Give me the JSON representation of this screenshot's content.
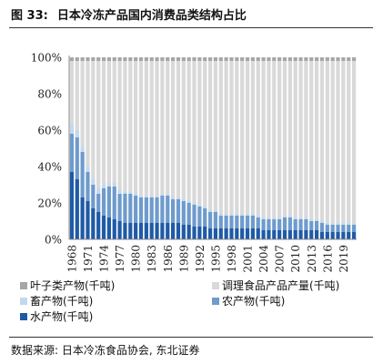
{
  "figure": {
    "title_prefix": "图 33:",
    "title": "日本冷冻产品国内消费品类结构占比",
    "source": "数据来源: 日本冷冻食品协会, 东北证券"
  },
  "chart_data": {
    "type": "bar",
    "stacked": true,
    "title": "日本冷冻产品国内消费品类结构占比",
    "xlabel": "",
    "ylabel": "",
    "ylim": [
      0,
      100
    ],
    "yticks": [
      "0%",
      "20%",
      "40%",
      "60%",
      "80%",
      "100%"
    ],
    "grid": false,
    "legend_position": "bottom",
    "x": [
      1968,
      1969,
      1970,
      1971,
      1972,
      1973,
      1974,
      1975,
      1976,
      1977,
      1978,
      1979,
      1980,
      1981,
      1982,
      1983,
      1984,
      1985,
      1986,
      1987,
      1988,
      1989,
      1990,
      1991,
      1992,
      1993,
      1994,
      1995,
      1996,
      1997,
      1998,
      1999,
      2000,
      2001,
      2002,
      2003,
      2004,
      2005,
      2006,
      2007,
      2008,
      2009,
      2010,
      2011,
      2012,
      2013,
      2014,
      2015,
      2016,
      2017,
      2018,
      2019,
      2020,
      2021
    ],
    "xtick_labels": [
      "1968",
      "1971",
      "1974",
      "1977",
      "1980",
      "1983",
      "1986",
      "1989",
      "1992",
      "1995",
      "1998",
      "2001",
      "2004",
      "2007",
      "2010",
      "2013",
      "2016",
      "2019"
    ],
    "series": [
      {
        "name": "水产物(千吨)",
        "color": "#1f5aa6",
        "values": [
          37,
          33,
          23,
          21,
          17,
          15,
          13,
          12,
          11,
          10,
          9,
          9,
          9,
          9,
          9,
          9,
          9,
          9,
          9,
          9,
          9,
          8,
          8,
          7,
          7,
          7,
          6,
          6,
          6,
          6,
          6,
          6,
          6,
          6,
          6,
          6,
          5,
          5,
          5,
          5,
          5,
          5,
          5,
          5,
          5,
          5,
          5,
          4,
          4,
          4,
          4,
          4,
          4,
          4
        ]
      },
      {
        "name": "农产物(千吨)",
        "color": "#6e9bcc",
        "values": [
          21,
          23,
          25,
          16,
          13,
          10,
          15,
          17,
          18,
          15,
          16,
          16,
          15,
          14,
          14,
          14,
          14,
          15,
          15,
          13,
          13,
          13,
          12,
          12,
          11,
          10,
          9,
          9,
          7,
          7,
          7,
          7,
          7,
          7,
          7,
          6,
          6,
          6,
          6,
          6,
          7,
          7,
          6,
          6,
          6,
          5,
          5,
          5,
          4,
          4,
          4,
          4,
          4,
          4
        ]
      },
      {
        "name": "畜产物(千吨)",
        "color": "#c3d8ec",
        "values": [
          5,
          4,
          3,
          3,
          3,
          3,
          2,
          2,
          2,
          2,
          1,
          1,
          1,
          1,
          1,
          1,
          1,
          1,
          1,
          1,
          1,
          1,
          1,
          1,
          1,
          1,
          1,
          1,
          1,
          1,
          1,
          1,
          1,
          1,
          1,
          1,
          1,
          1,
          1,
          1,
          1,
          1,
          1,
          1,
          1,
          1,
          1,
          1,
          1,
          1,
          1,
          1,
          1,
          1
        ]
      },
      {
        "name": "调理食品产品产量(千吨)",
        "color": "#d9d9d9",
        "values": [
          35,
          38,
          47,
          58,
          65,
          70,
          68,
          67,
          67,
          71,
          72,
          72,
          73,
          74,
          74,
          74,
          74,
          73,
          73,
          75,
          75,
          76,
          77,
          78,
          79,
          80,
          82,
          82,
          84,
          84,
          84,
          84,
          84,
          84,
          84,
          85,
          86,
          86,
          86,
          86,
          85,
          85,
          86,
          86,
          86,
          87,
          87,
          88,
          89,
          89,
          89,
          89,
          89,
          89
        ]
      },
      {
        "name": "叶子类产物(千吨)",
        "color": "#a6a6a6",
        "values": [
          2,
          2,
          2,
          2,
          2,
          2,
          2,
          2,
          2,
          2,
          2,
          2,
          2,
          2,
          2,
          2,
          2,
          2,
          2,
          2,
          2,
          2,
          2,
          2,
          2,
          2,
          2,
          2,
          2,
          2,
          2,
          2,
          2,
          2,
          2,
          2,
          2,
          2,
          2,
          2,
          2,
          2,
          2,
          2,
          2,
          2,
          2,
          2,
          2,
          2,
          2,
          2,
          2,
          2
        ]
      }
    ]
  },
  "legend": {
    "items": [
      {
        "label": "叶子类产物(千吨)",
        "color": "#a6a6a6"
      },
      {
        "label": "调理食品产品产量(千吨)",
        "color": "#d9d9d9"
      },
      {
        "label": "畜产物(千吨)",
        "color": "#c3d8ec"
      },
      {
        "label": "农产物(千吨)",
        "color": "#6e9bcc"
      },
      {
        "label": "水产物(千吨)",
        "color": "#1f5aa6"
      }
    ]
  }
}
